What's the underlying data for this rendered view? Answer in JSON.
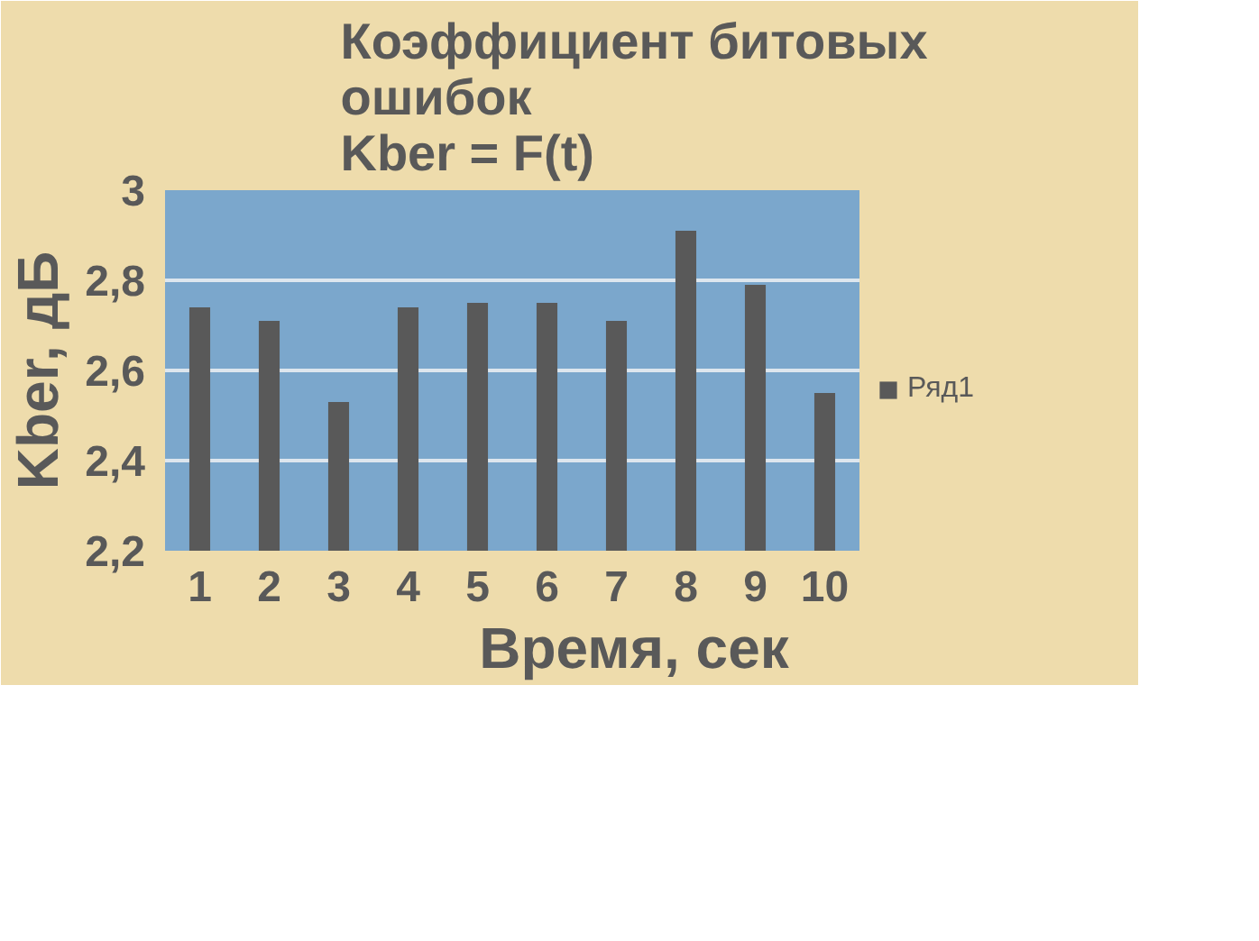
{
  "chart_data": {
    "type": "bar",
    "title": "Коэффициент битовых\nошибок\nKber = F(t)",
    "xlabel": "Время, сек",
    "ylabel": "Kber, дБ",
    "categories": [
      "1",
      "2",
      "3",
      "4",
      "5",
      "6",
      "7",
      "8",
      "9",
      "10"
    ],
    "series": [
      {
        "name": "Ряд1",
        "color": "#595959",
        "values": [
          2.74,
          2.71,
          2.53,
          2.74,
          2.75,
          2.75,
          2.71,
          2.91,
          2.79,
          2.55
        ]
      }
    ],
    "ylim": [
      2.2,
      3
    ],
    "yticks": [
      {
        "value": 2.2,
        "label": "2,2"
      },
      {
        "value": 2.4,
        "label": "2,4"
      },
      {
        "value": 2.6,
        "label": "2,6"
      },
      {
        "value": 2.8,
        "label": "2,8"
      },
      3
    ],
    "grid": "y",
    "legend": "right"
  }
}
